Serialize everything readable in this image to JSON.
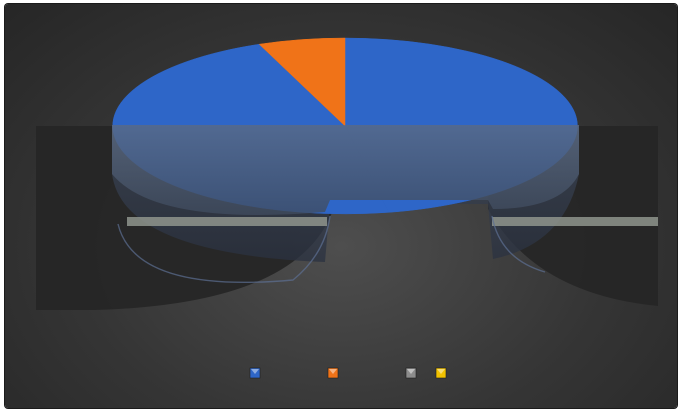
{
  "chart_data": {
    "type": "pie",
    "style": "3d-exploded",
    "title": "",
    "series": [
      {
        "name": "",
        "value": 47.0,
        "color": "#2e66c8"
      },
      {
        "name": "",
        "value": 47.0,
        "color": "#2e66c8"
      },
      {
        "name": "",
        "value": 6.0,
        "color": "#f07318"
      }
    ],
    "legend": {
      "placement": "bottom",
      "entries": [
        {
          "name": "",
          "color": "#2e66c8"
        },
        {
          "name": "",
          "color": "#f07318"
        },
        {
          "name": "",
          "color": "#8c8c8c"
        },
        {
          "name": "",
          "color": "#f2c200"
        }
      ]
    },
    "colors": {
      "background": "#3a3a3a",
      "slice_blue": "#2e66c8",
      "slice_orange": "#f07318",
      "legend_gray": "#8c8c8c",
      "legend_yellow": "#f2c200"
    }
  }
}
